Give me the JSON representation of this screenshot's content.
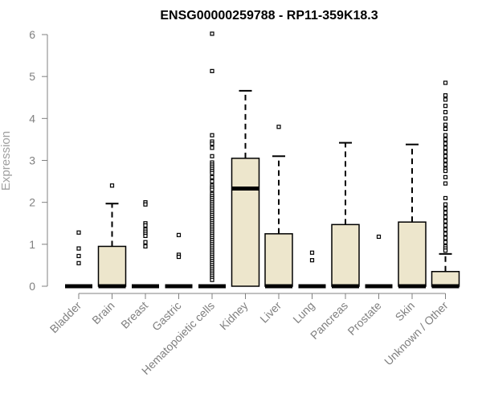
{
  "chart_data": {
    "type": "box",
    "title": "ENSG00000259788 - RP11-359K18.3",
    "xlabel": "",
    "ylabel": "Expression",
    "ylim": [
      0,
      6
    ],
    "yticks": [
      "0",
      "1",
      "2",
      "3",
      "4",
      "5",
      "6"
    ],
    "box_fill": "#ede6cc",
    "categories": [
      "Bladder",
      "Brain",
      "Breast",
      "Gastric",
      "Hematopoietic cells",
      "Kidney",
      "Liver",
      "Lung",
      "Pancreas",
      "Prostate",
      "Skin",
      "Unknown / Other"
    ],
    "boxes": [
      {
        "q1": 0,
        "median": 0,
        "q3": 0,
        "whisker_low": 0,
        "whisker_high": 0,
        "outliers": [
          1.28,
          0.9,
          0.72,
          0.55
        ]
      },
      {
        "q1": 0,
        "median": 0,
        "q3": 0.95,
        "whisker_low": 0,
        "whisker_high": 1.97,
        "outliers": [
          2.4
        ]
      },
      {
        "q1": 0,
        "median": 0,
        "q3": 0,
        "whisker_low": 0,
        "whisker_high": 0,
        "outliers": [
          2.0,
          1.95,
          1.5,
          1.45,
          1.35,
          1.3,
          1.25,
          1.2,
          1.05,
          0.95
        ]
      },
      {
        "q1": 0,
        "median": 0,
        "q3": 0,
        "whisker_low": 0,
        "whisker_high": 0,
        "outliers": [
          1.22,
          0.75,
          0.7
        ]
      },
      {
        "q1": 0,
        "median": 0,
        "q3": 0,
        "whisker_low": 0,
        "whisker_high": 0,
        "outliers": [
          6.02,
          5.13,
          3.6,
          3.45,
          3.4,
          3.3,
          3.1,
          2.95,
          2.9,
          2.85,
          2.8,
          2.75,
          2.7,
          2.6,
          2.5,
          2.4,
          2.35,
          2.3,
          2.2,
          2.15,
          2.1,
          2.05,
          2.0,
          1.95,
          1.9,
          1.85,
          1.8,
          1.75,
          1.7,
          1.65,
          1.6,
          1.55,
          1.5,
          1.45,
          1.4,
          1.35,
          1.3,
          1.25,
          1.2,
          1.15,
          1.1,
          1.05,
          1.0,
          0.95,
          0.9,
          0.85,
          0.8,
          0.75,
          0.7,
          0.65,
          0.6,
          0.55,
          0.5,
          0.45,
          0.4,
          0.35,
          0.3,
          0.25,
          0.2,
          0.15
        ]
      },
      {
        "q1": 0,
        "median": 2.33,
        "q3": 3.05,
        "whisker_low": 0,
        "whisker_high": 4.66,
        "outliers": []
      },
      {
        "q1": 0,
        "median": 0,
        "q3": 1.25,
        "whisker_low": 0,
        "whisker_high": 3.1,
        "outliers": [
          3.8
        ]
      },
      {
        "q1": 0,
        "median": 0,
        "q3": 0,
        "whisker_low": 0,
        "whisker_high": 0,
        "outliers": [
          0.8,
          0.62
        ]
      },
      {
        "q1": 0,
        "median": 0,
        "q3": 1.47,
        "whisker_low": 0,
        "whisker_high": 3.42,
        "outliers": []
      },
      {
        "q1": 0,
        "median": 0,
        "q3": 0,
        "whisker_low": 0,
        "whisker_high": 0,
        "outliers": [
          1.18
        ]
      },
      {
        "q1": 0,
        "median": 0,
        "q3": 1.53,
        "whisker_low": 0,
        "whisker_high": 3.38,
        "outliers": []
      },
      {
        "q1": 0,
        "median": 0,
        "q3": 0.35,
        "whisker_low": 0,
        "whisker_high": 0.77,
        "outliers": [
          4.85,
          4.55,
          4.45,
          4.3,
          4.15,
          4.0,
          3.85,
          3.75,
          3.6,
          3.5,
          3.4,
          3.3,
          3.2,
          3.1,
          3.0,
          2.9,
          2.8,
          2.75,
          2.6,
          2.45,
          2.1,
          1.95,
          1.85,
          1.75,
          1.65,
          1.55,
          1.45,
          1.35,
          1.25,
          1.15,
          1.05,
          0.95,
          0.9,
          0.85
        ]
      }
    ]
  }
}
